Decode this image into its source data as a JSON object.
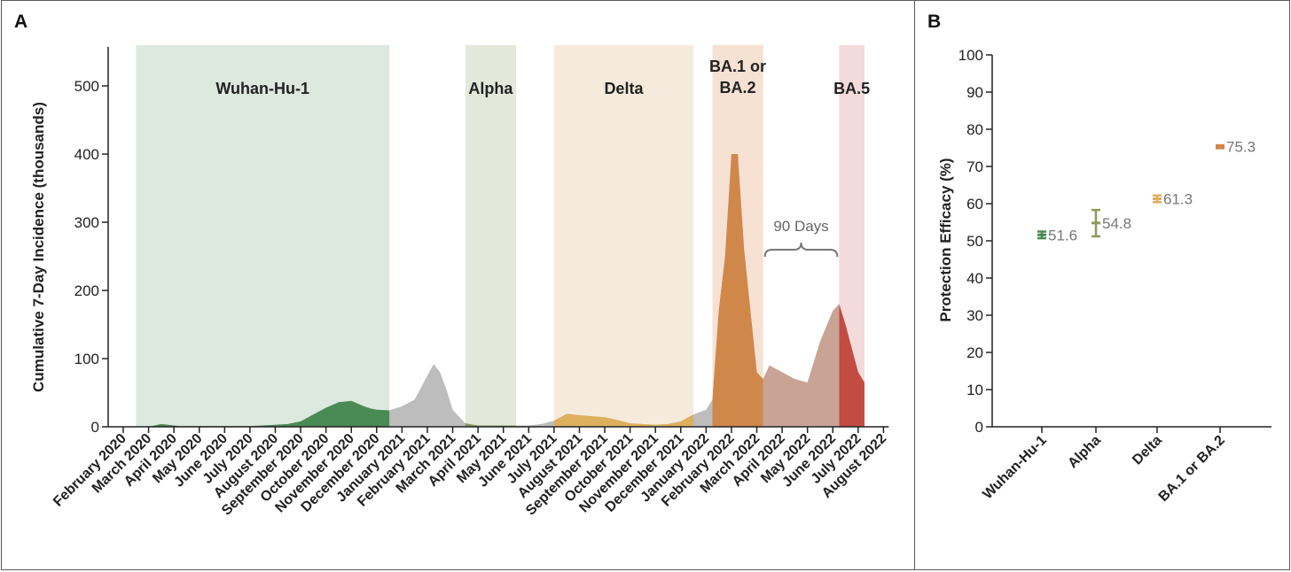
{
  "panel_a": {
    "label": "A",
    "chart_data": {
      "type": "area",
      "title": "",
      "ylabel": "Cumulative 7-Day Incidence (thousands)",
      "xlabel": "",
      "ylim": [
        0,
        560
      ],
      "yticks": [
        0,
        100,
        200,
        300,
        400,
        500
      ],
      "month_labels": [
        "February 2020",
        "March 2020",
        "April 2020",
        "May 2020",
        "June 2020",
        "July 2020",
        "August 2020",
        "September 2020",
        "October 2020",
        "November 2020",
        "December 2020",
        "January 2021",
        "February 2021",
        "March 2021",
        "April 2021",
        "May 2021",
        "June 2021",
        "July 2021",
        "August 2021",
        "September 2021",
        "October 2021",
        "November 2021",
        "December 2021",
        "January 2022",
        "February 2022",
        "March 2022",
        "April 2022",
        "May 2022",
        "June 2022",
        "July 2022",
        "August 2022"
      ],
      "variant_periods": [
        {
          "name": "Wuhan-Hu-1",
          "start": 0.5,
          "end": 10.5,
          "shade": "#dde8df",
          "fill": "#4a8a55",
          "label_lines": [
            "Wuhan-Hu-1"
          ]
        },
        {
          "name": "Alpha",
          "start": 13.5,
          "end": 15.5,
          "shade": "#e4e8db",
          "fill": "#8a9a5c",
          "label_lines": [
            "Alpha"
          ]
        },
        {
          "name": "Delta",
          "start": 17.0,
          "end": 22.5,
          "shade": "#f5ebdd",
          "fill": "#ddb05e",
          "label_lines": [
            "Delta"
          ]
        },
        {
          "name": "BA.1 or BA.2",
          "start": 23.25,
          "end": 25.25,
          "shade": "#f6e1d3",
          "fill": "#d0874a",
          "label_lines": [
            "BA.1 or",
            "BA.2"
          ]
        },
        {
          "name": "BA.5",
          "start": 28.25,
          "end": 29.25,
          "shade": "#f3dadb",
          "fill": "#c24b42",
          "label_lines": [
            "BA.5"
          ]
        }
      ],
      "gap_fill": "#bdbdbd",
      "interval_fill": "#c9a395",
      "interval": {
        "start": 25.25,
        "end": 28.25,
        "fill": "#c9a395"
      },
      "series": [
        {
          "name": "Cumulative 7-Day Incidence",
          "x": [
            0.5,
            1.0,
            1.5,
            2.0,
            2.25,
            2.5,
            3.0,
            3.5,
            4.0,
            4.5,
            5.0,
            5.5,
            6.0,
            6.5,
            7.0,
            7.5,
            8.0,
            8.5,
            9.0,
            9.5,
            9.75,
            10.0,
            10.5,
            11.0,
            11.5,
            12.0,
            12.25,
            12.5,
            12.75,
            13.0,
            13.5,
            14.0,
            15.0,
            15.5,
            16.0,
            16.5,
            17.0,
            17.25,
            17.5,
            18.0,
            19.0,
            19.5,
            20.0,
            21.0,
            21.5,
            22.0,
            22.5,
            23.0,
            23.25,
            23.5,
            23.75,
            24.0,
            24.25,
            24.5,
            25.0,
            25.25,
            25.5,
            26.0,
            26.5,
            27.0,
            27.5,
            28.0,
            28.25,
            28.5,
            29.0,
            29.25
          ],
          "values": [
            0,
            0,
            4,
            2,
            1,
            1,
            1,
            1,
            1,
            1,
            1,
            2,
            3,
            4,
            8,
            18,
            28,
            36,
            38,
            30,
            27,
            25,
            24,
            30,
            40,
            75,
            92,
            80,
            55,
            25,
            5,
            2,
            2,
            2,
            2,
            4,
            9,
            14,
            19,
            17,
            14,
            10,
            5,
            3,
            4,
            8,
            18,
            25,
            40,
            170,
            250,
            400,
            400,
            260,
            80,
            70,
            90,
            80,
            70,
            65,
            125,
            170,
            180,
            150,
            80,
            65
          ]
        }
      ],
      "annotation": {
        "text": "90 Days",
        "start": 25.25,
        "end": 28.25
      }
    }
  },
  "panel_b": {
    "label": "B",
    "chart_data": {
      "type": "scatter",
      "title": "",
      "ylabel": "Protection Efficacy (%)",
      "xlabel": "",
      "ylim": [
        0,
        100
      ],
      "yticks": [
        0,
        10,
        20,
        30,
        40,
        50,
        60,
        70,
        80,
        90,
        100
      ],
      "categories": [
        "Wuhan-Hu-1",
        "Alpha",
        "Delta",
        "BA.1 or BA.2"
      ],
      "values": [
        51.6,
        54.8,
        61.3,
        75.3
      ],
      "value_labels": [
        "51.6",
        "54.8",
        "61.3",
        "75.3"
      ],
      "ci_lower": [
        50.7,
        51.2,
        60.4,
        74.9
      ],
      "ci_upper": [
        52.5,
        58.3,
        62.2,
        75.7
      ],
      "colors": [
        "#4a8a55",
        "#8a9a5c",
        "#ddb05e",
        "#d0874a"
      ]
    }
  }
}
